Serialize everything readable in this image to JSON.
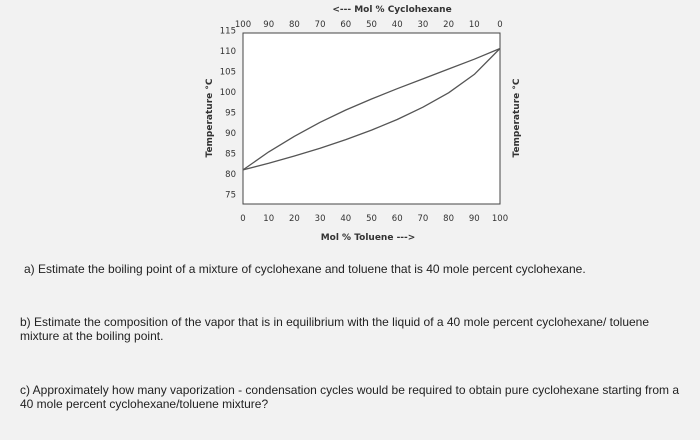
{
  "chart_data": {
    "type": "line",
    "title": "",
    "top_axis": {
      "label": "<--- Mol % Cyclohexane",
      "ticks": [
        "100",
        "90",
        "80",
        "70",
        "60",
        "50",
        "40",
        "30",
        "20",
        "10",
        "0"
      ]
    },
    "xlabel": "Mol % Toluene --->",
    "x_ticks": [
      "0",
      "10",
      "20",
      "30",
      "40",
      "50",
      "60",
      "70",
      "80",
      "90",
      "100"
    ],
    "xlim": [
      0,
      100
    ],
    "ylabel": "Temperature °C",
    "ylabel_right": "Temperature °C",
    "y_ticks": [
      "75",
      "80",
      "85",
      "90",
      "95",
      "100",
      "105",
      "110",
      "115"
    ],
    "ylim": [
      75,
      115
    ],
    "grid": false,
    "series": [
      {
        "color": "#555555",
        "x": [
          0,
          10,
          20,
          30,
          40,
          50,
          60,
          70,
          80,
          90,
          100
        ],
        "y": [
          81.0,
          85.4,
          89.2,
          92.6,
          95.6,
          98.3,
          100.8,
          103.2,
          105.6,
          108.0,
          110.6
        ]
      },
      {
        "color": "#555555",
        "x": [
          0,
          10,
          20,
          30,
          40,
          50,
          60,
          70,
          80,
          90,
          100
        ],
        "y": [
          81.0,
          82.6,
          84.4,
          86.3,
          88.4,
          90.7,
          93.3,
          96.3,
          99.8,
          104.3,
          110.6
        ]
      }
    ]
  },
  "questions": {
    "a": "a) Estimate the boiling point of a mixture of cyclohexane and toluene that is 40 mole percent cyclohexane.",
    "b": "b) Estimate the composition of the vapor that is in equilibrium with the liquid of a 40 mole percent cyclohexane/ toluene mixture at the boiling point.",
    "c": "c) Approximately how many vaporization - condensation cycles would be required to obtain pure cyclohexane starting from a 40 mole percent cyclohexane/toluene mixture?"
  }
}
